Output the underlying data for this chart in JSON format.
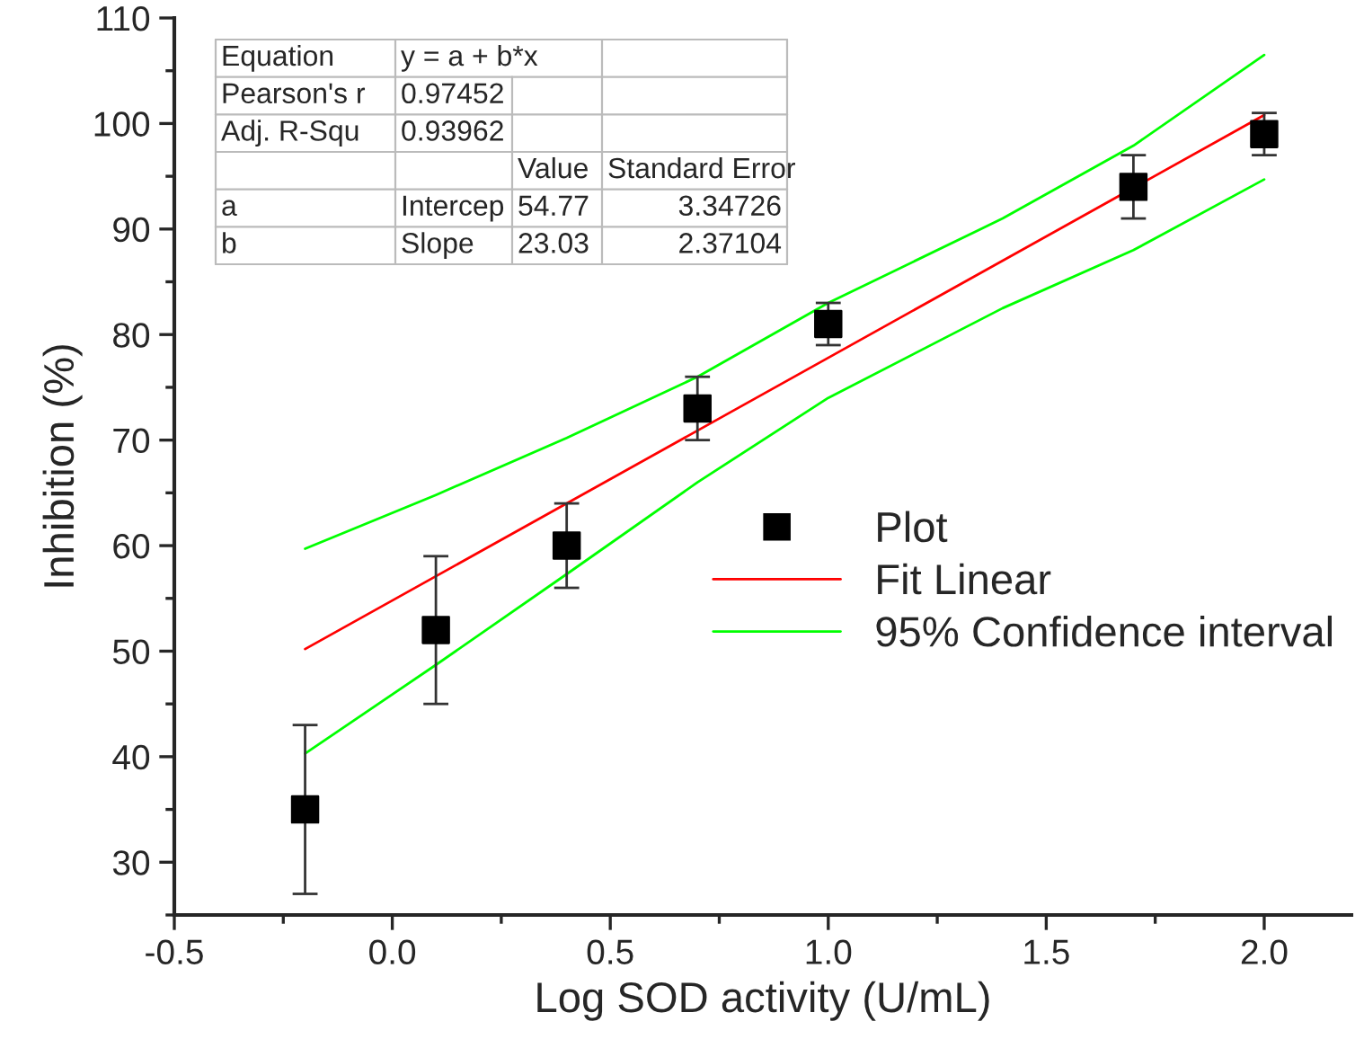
{
  "chart_data": {
    "type": "scatter",
    "xlabel": "Log SOD activity (U/mL)",
    "ylabel": "Inhibition (%)",
    "xlim": [
      -0.5,
      2.2
    ],
    "xticks": [
      {
        "value": -0.5,
        "label": "-0.5"
      },
      {
        "value": 0,
        "label": "0.0"
      },
      0.5,
      {
        "value": 1,
        "label": "1.0"
      },
      1.5,
      {
        "value": 2,
        "label": "2.0"
      }
    ],
    "ylim": [
      25,
      110
    ],
    "yticks": [
      30,
      40,
      50,
      60,
      70,
      80,
      90,
      100,
      110
    ],
    "grid": false,
    "legend": "right",
    "series": [
      {
        "name": "Plot",
        "color": "#000000",
        "marker": "square",
        "x": [
          -0.2,
          0.1,
          0.4,
          0.7,
          1.0,
          1.7,
          2.0
        ],
        "values": [
          35,
          52,
          60,
          73,
          81,
          94,
          99
        ],
        "errors": [
          8,
          7,
          4,
          3,
          2,
          3,
          2
        ]
      },
      {
        "name": "Fit Linear",
        "type": "line",
        "color": "#ff0000",
        "marker": "none",
        "line_style": "solid",
        "x": [
          -0.2,
          2.0
        ],
        "values": [
          50.2,
          100.8
        ]
      },
      {
        "name": "95% Confidence interval",
        "type": "line",
        "color": "#00ff00",
        "marker": "none",
        "line_style": "solid",
        "x": [
          -0.2,
          0.1,
          0.4,
          0.7,
          1.0,
          1.4,
          1.7,
          2.0
        ],
        "values": [
          59.7,
          64.8,
          70.2,
          76.0,
          83.0,
          91.0,
          97.9,
          106.5
        ]
      },
      {
        "type": "line",
        "color": "#00ff00",
        "marker": "none",
        "line_style": "solid",
        "x": [
          -0.2,
          0.1,
          0.4,
          0.7,
          1.0,
          1.4,
          1.7,
          2.0
        ],
        "values": [
          40.3,
          48.7,
          57.3,
          66.0,
          74.0,
          82.5,
          88.0,
          94.7
        ]
      }
    ],
    "annotations": [
      "Equation",
      "y = a + b*x",
      "Pearson's r",
      "0.97452",
      "Adj. R-Squ",
      "0.93962",
      "Value",
      "Standard Error",
      "a",
      "Intercep",
      "54.77",
      "3.34726",
      "b",
      "Slope",
      "23.03",
      "2.37104"
    ]
  }
}
